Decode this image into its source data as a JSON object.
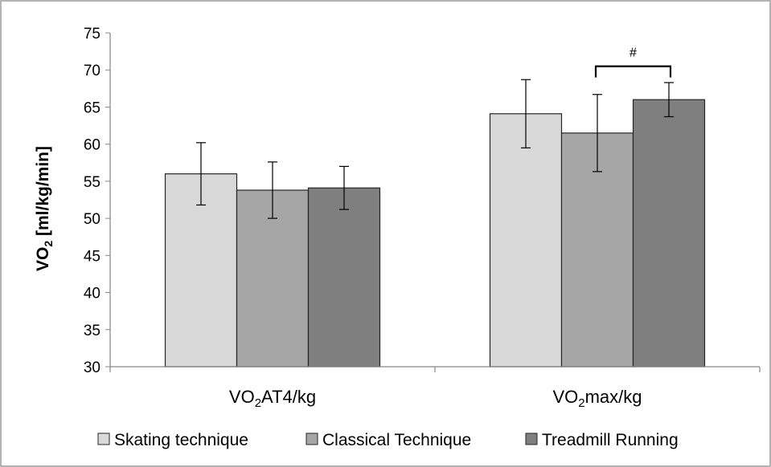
{
  "chart_data": {
    "type": "bar",
    "ylabel": {
      "main": "VO",
      "sub": "2",
      "rest": " [ml/kg/min]"
    },
    "ylim": [
      30,
      75
    ],
    "yticks": [
      30,
      35,
      40,
      45,
      50,
      55,
      60,
      65,
      70,
      75
    ],
    "categories": [
      {
        "main": "VO",
        "sub": "2",
        "rest": "AT4/kg"
      },
      {
        "main": "VO",
        "sub": "2",
        "rest": "max/kg"
      }
    ],
    "series": [
      {
        "name": "Skating technique",
        "color": "#d9d9d9",
        "values": [
          56.0,
          64.1
        ],
        "errors": [
          4.2,
          4.6
        ]
      },
      {
        "name": "Classical Technique",
        "color": "#a6a6a6",
        "values": [
          53.8,
          61.5
        ],
        "errors": [
          3.8,
          5.2
        ]
      },
      {
        "name": "Treadmill Running",
        "color": "#7f7f7f",
        "values": [
          54.1,
          66.0
        ],
        "errors": [
          2.9,
          2.3
        ]
      }
    ],
    "annotations": [
      {
        "text": "#",
        "category_index": 1,
        "from_series": 1,
        "to_series": 2
      }
    ],
    "legend_position": "bottom",
    "grid": false
  }
}
